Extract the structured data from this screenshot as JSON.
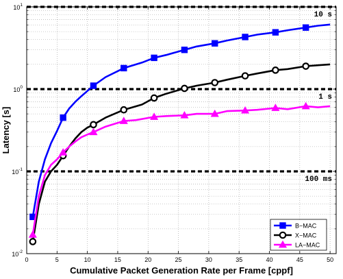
{
  "chart_data": {
    "type": "line",
    "xlabel": "Cumulative Packet Generation Rate per Frame [cppf]",
    "ylabel": "Latency [s]",
    "xlim": [
      0,
      51
    ],
    "ylim": [
      0.01,
      10
    ],
    "yscale": "log",
    "grid": true,
    "legend_position": "bottom-right",
    "x_ticks": [
      "0",
      "5",
      "10",
      "15",
      "20",
      "25",
      "30",
      "35",
      "40",
      "45",
      "50"
    ],
    "y_ticks": [
      {
        "base": "10",
        "exp": "-2"
      },
      {
        "base": "10",
        "exp": "-1"
      },
      {
        "base": "10",
        "exp": "0"
      },
      {
        "base": "10",
        "exp": "1"
      }
    ],
    "reference_lines": [
      {
        "value": 10,
        "label": "10 s"
      },
      {
        "value": 1,
        "label": "1 s"
      },
      {
        "value": 0.1,
        "label": "100 ms"
      }
    ],
    "series": [
      {
        "name": "B−MAC",
        "color": "#0000ff",
        "marker": "square",
        "marker_x": [
          1,
          6,
          11,
          16,
          21,
          26,
          31,
          36,
          41,
          46
        ],
        "x": [
          1,
          2,
          3,
          4,
          5,
          6,
          7,
          8,
          9,
          10,
          11,
          13,
          16,
          19,
          21,
          23,
          26,
          28,
          31,
          33,
          36,
          38,
          41,
          43,
          46,
          48,
          50
        ],
        "y": [
          0.028,
          0.075,
          0.14,
          0.22,
          0.31,
          0.45,
          0.58,
          0.7,
          0.82,
          0.95,
          1.1,
          1.4,
          1.8,
          2.1,
          2.4,
          2.6,
          3.0,
          3.3,
          3.6,
          3.9,
          4.3,
          4.6,
          4.9,
          5.2,
          5.6,
          5.9,
          6.1
        ]
      },
      {
        "name": "X−MAC",
        "color": "#000000",
        "marker": "circle",
        "marker_x": [
          1,
          6,
          11,
          16,
          21,
          26,
          31,
          36,
          41,
          46
        ],
        "x": [
          1,
          2,
          3,
          4,
          5,
          6,
          7,
          8,
          9,
          10,
          11,
          13,
          16,
          19,
          21,
          23,
          26,
          28,
          31,
          33,
          36,
          38,
          41,
          43,
          46,
          48,
          50
        ],
        "y": [
          0.014,
          0.04,
          0.075,
          0.1,
          0.12,
          0.155,
          0.2,
          0.25,
          0.3,
          0.34,
          0.37,
          0.45,
          0.56,
          0.65,
          0.78,
          0.88,
          1.02,
          1.1,
          1.2,
          1.3,
          1.45,
          1.55,
          1.7,
          1.75,
          1.9,
          1.95,
          2.0
        ]
      },
      {
        "name": "LA−MAC",
        "color": "#ff00ff",
        "marker": "triangle",
        "marker_x": [
          1,
          6,
          11,
          16,
          21,
          26,
          31,
          36,
          41,
          46
        ],
        "x": [
          1,
          2,
          3,
          4,
          5,
          6,
          7,
          8,
          9,
          10,
          11,
          13,
          16,
          18,
          21,
          23,
          26,
          28,
          31,
          33,
          36,
          38,
          41,
          43,
          46,
          48,
          50
        ],
        "y": [
          0.017,
          0.05,
          0.09,
          0.12,
          0.14,
          0.17,
          0.2,
          0.23,
          0.26,
          0.28,
          0.3,
          0.35,
          0.41,
          0.42,
          0.46,
          0.47,
          0.48,
          0.5,
          0.5,
          0.54,
          0.55,
          0.56,
          0.59,
          0.57,
          0.62,
          0.6,
          0.62
        ]
      }
    ]
  }
}
